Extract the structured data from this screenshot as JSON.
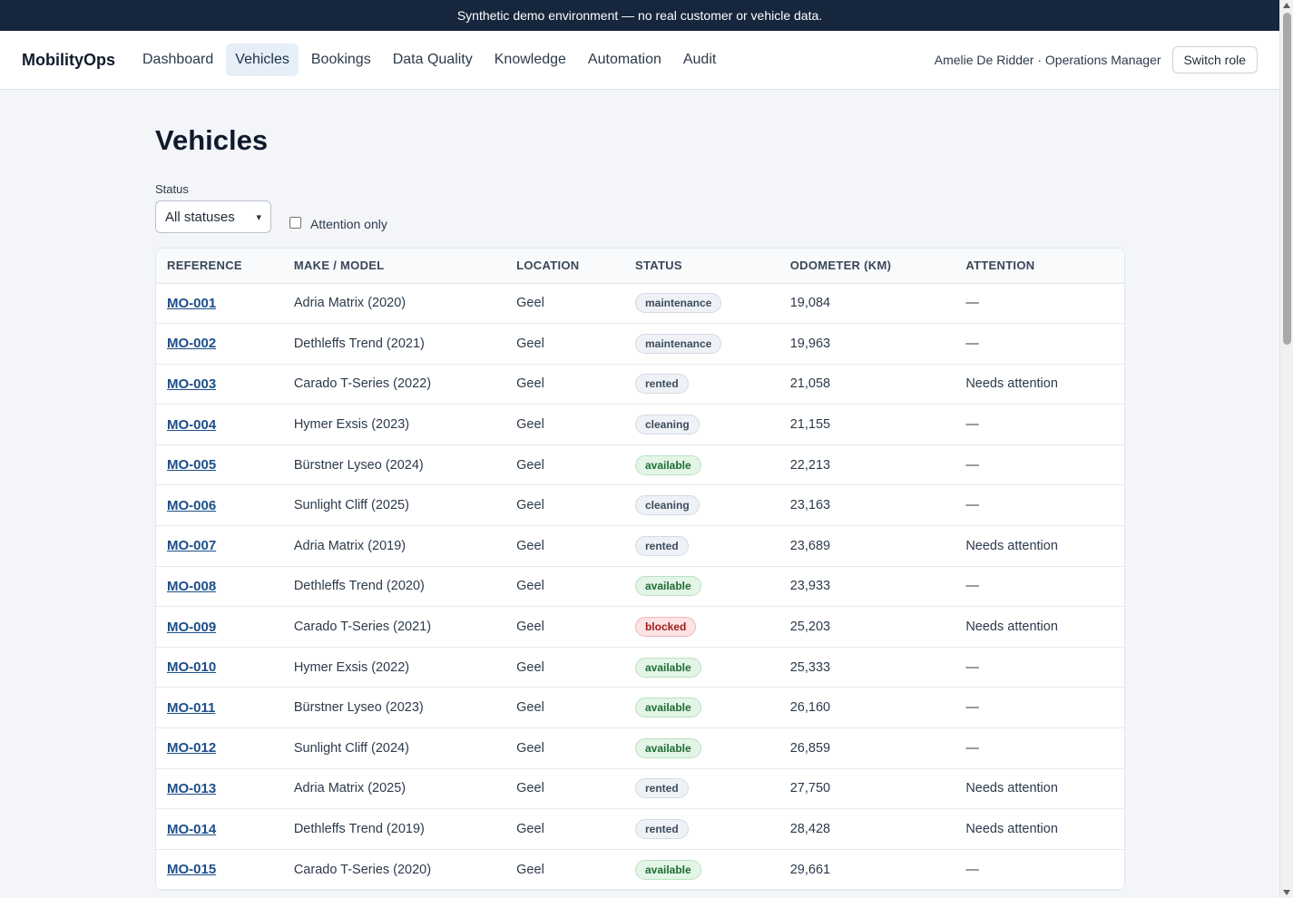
{
  "banner": {
    "text": "Synthetic demo environment — no real customer or vehicle data."
  },
  "nav": {
    "brand": "MobilityOps",
    "links": [
      "Dashboard",
      "Vehicles",
      "Bookings",
      "Data Quality",
      "Knowledge",
      "Automation",
      "Audit"
    ],
    "active": "Vehicles",
    "user": "Amelie De Ridder · Operations Manager",
    "switch_role": "Switch role"
  },
  "page": {
    "title": "Vehicles",
    "filters": {
      "status_label": "Status",
      "status_value": "All statuses",
      "attention_label": "Attention only",
      "attention_checked": false
    }
  },
  "table": {
    "headers": [
      "REFERENCE",
      "MAKE / MODEL",
      "LOCATION",
      "STATUS",
      "ODOMETER (KM)",
      "ATTENTION"
    ],
    "rows": [
      {
        "ref": "MO-001",
        "model": "Adria Matrix (2020)",
        "location": "Geel",
        "status": "maintenance",
        "odometer": "19,084",
        "attention": "—"
      },
      {
        "ref": "MO-002",
        "model": "Dethleffs Trend (2021)",
        "location": "Geel",
        "status": "maintenance",
        "odometer": "19,963",
        "attention": "—"
      },
      {
        "ref": "MO-003",
        "model": "Carado T-Series (2022)",
        "location": "Geel",
        "status": "rented",
        "odometer": "21,058",
        "attention": "Needs attention"
      },
      {
        "ref": "MO-004",
        "model": "Hymer Exsis (2023)",
        "location": "Geel",
        "status": "cleaning",
        "odometer": "21,155",
        "attention": "—"
      },
      {
        "ref": "MO-005",
        "model": "Bürstner Lyseo (2024)",
        "location": "Geel",
        "status": "available",
        "odometer": "22,213",
        "attention": "—"
      },
      {
        "ref": "MO-006",
        "model": "Sunlight Cliff (2025)",
        "location": "Geel",
        "status": "cleaning",
        "odometer": "23,163",
        "attention": "—"
      },
      {
        "ref": "MO-007",
        "model": "Adria Matrix (2019)",
        "location": "Geel",
        "status": "rented",
        "odometer": "23,689",
        "attention": "Needs attention"
      },
      {
        "ref": "MO-008",
        "model": "Dethleffs Trend (2020)",
        "location": "Geel",
        "status": "available",
        "odometer": "23,933",
        "attention": "—"
      },
      {
        "ref": "MO-009",
        "model": "Carado T-Series (2021)",
        "location": "Geel",
        "status": "blocked",
        "odometer": "25,203",
        "attention": "Needs attention"
      },
      {
        "ref": "MO-010",
        "model": "Hymer Exsis (2022)",
        "location": "Geel",
        "status": "available",
        "odometer": "25,333",
        "attention": "—"
      },
      {
        "ref": "MO-011",
        "model": "Bürstner Lyseo (2023)",
        "location": "Geel",
        "status": "available",
        "odometer": "26,160",
        "attention": "—"
      },
      {
        "ref": "MO-012",
        "model": "Sunlight Cliff (2024)",
        "location": "Geel",
        "status": "available",
        "odometer": "26,859",
        "attention": "—"
      },
      {
        "ref": "MO-013",
        "model": "Adria Matrix (2025)",
        "location": "Geel",
        "status": "rented",
        "odometer": "27,750",
        "attention": "Needs attention"
      },
      {
        "ref": "MO-014",
        "model": "Dethleffs Trend (2019)",
        "location": "Geel",
        "status": "rented",
        "odometer": "28,428",
        "attention": "Needs attention"
      },
      {
        "ref": "MO-015",
        "model": "Carado T-Series (2020)",
        "location": "Geel",
        "status": "available",
        "odometer": "29,661",
        "attention": "—"
      }
    ]
  },
  "colors": {
    "banner_bg": "#15263d",
    "link": "#1d4e89",
    "available_bg": "#e3f5e7",
    "blocked_bg": "#fde3e3"
  },
  "icons": {
    "select_chevron": "chevron-down-icon"
  }
}
